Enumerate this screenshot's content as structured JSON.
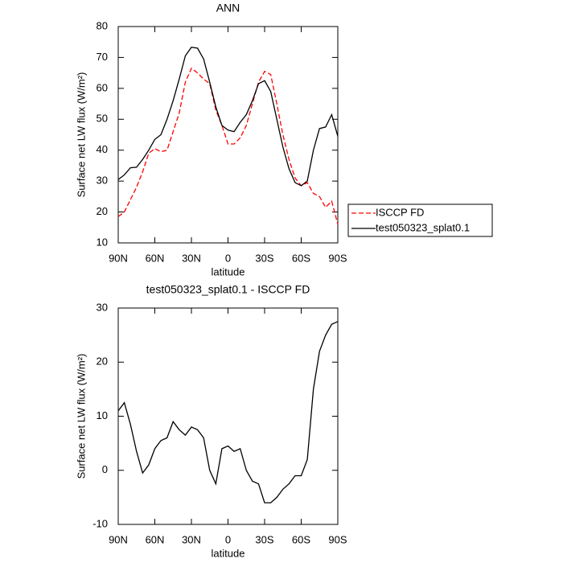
{
  "chart_data": [
    {
      "type": "line",
      "title": "ANN",
      "x_label": "latitude",
      "y_label": "Surface net LW flux (W/m²)",
      "x": [
        90,
        85,
        80,
        75,
        70,
        65,
        60,
        55,
        50,
        45,
        40,
        35,
        30,
        25,
        20,
        15,
        10,
        5,
        0,
        -5,
        -10,
        -15,
        -20,
        -25,
        -30,
        -35,
        -40,
        -45,
        -50,
        -55,
        -60,
        -65,
        -70,
        -75,
        -80,
        -85,
        -90
      ],
      "series": [
        {
          "name": "ISCCP FD",
          "color": "#ff0000",
          "dash": true,
          "values": [
            18.5,
            20,
            24,
            28,
            33,
            39,
            40.5,
            39.5,
            40,
            46,
            52,
            62,
            66.5,
            65,
            63,
            61.5,
            53,
            48,
            42,
            42,
            44,
            48,
            55,
            62,
            65.5,
            64.5,
            55,
            45,
            37,
            31,
            28.5,
            29.5,
            26,
            25,
            21.5,
            23.5,
            16
          ]
        },
        {
          "name": "test050323_splat0.1",
          "color": "#000000",
          "dash": false,
          "values": [
            30.5,
            32,
            34.3,
            34.5,
            37,
            40,
            43.5,
            45,
            50,
            56,
            63,
            70.5,
            73.3,
            73,
            69.5,
            62,
            54,
            48,
            46.5,
            46,
            49,
            51.5,
            56,
            61.5,
            62.5,
            59,
            50,
            41,
            34,
            29.5,
            28.5,
            30,
            40,
            47,
            47.5,
            51.5,
            44.5
          ]
        }
      ],
      "xlim": [
        90,
        -90
      ],
      "xticks": [
        {
          "value": 90,
          "label": "90N"
        },
        {
          "value": 60,
          "label": "60N"
        },
        {
          "value": 30,
          "label": "30N"
        },
        0,
        {
          "value": -30,
          "label": "30S"
        },
        {
          "value": -60,
          "label": "60S"
        },
        {
          "value": -90,
          "label": "90S"
        }
      ],
      "ylim": [
        10,
        80
      ],
      "yticks": [
        10,
        20,
        30,
        40,
        50,
        60,
        70,
        80
      ],
      "legend": "right"
    },
    {
      "type": "line",
      "title": "test050323_splat0.1 - ISCCP FD",
      "x_label": "latitude",
      "y_label": "Surface net LW flux (W/m²)",
      "x": [
        90,
        85,
        80,
        75,
        70,
        65,
        60,
        55,
        50,
        45,
        40,
        35,
        30,
        25,
        20,
        15,
        10,
        5,
        0,
        -5,
        -10,
        -15,
        -20,
        -25,
        -30,
        -35,
        -40,
        -45,
        -50,
        -55,
        -60,
        -65,
        -70,
        -75,
        -80,
        -85,
        -90
      ],
      "series": [
        {
          "color": "#000000",
          "values": [
            11,
            12.5,
            8.5,
            3.5,
            -0.5,
            1,
            4,
            5.5,
            6,
            9,
            7.5,
            6.5,
            8,
            7.5,
            6,
            0,
            -2.5,
            4,
            4.5,
            3.5,
            4,
            0,
            -2,
            -2.5,
            -6,
            -6,
            -5,
            -3.5,
            -2.5,
            -1,
            -1,
            2,
            15,
            22,
            25,
            27,
            27.5
          ]
        }
      ],
      "xlim": [
        90,
        -90
      ],
      "xticks": [
        {
          "value": 90,
          "label": "90N"
        },
        {
          "value": 60,
          "label": "60N"
        },
        {
          "value": 30,
          "label": "30N"
        },
        0,
        {
          "value": -30,
          "label": "30S"
        },
        {
          "value": -60,
          "label": "60S"
        },
        {
          "value": -90,
          "label": "90S"
        }
      ],
      "ylim": [
        -10,
        30
      ],
      "yticks": [
        -10,
        0,
        10,
        20,
        30
      ]
    }
  ]
}
